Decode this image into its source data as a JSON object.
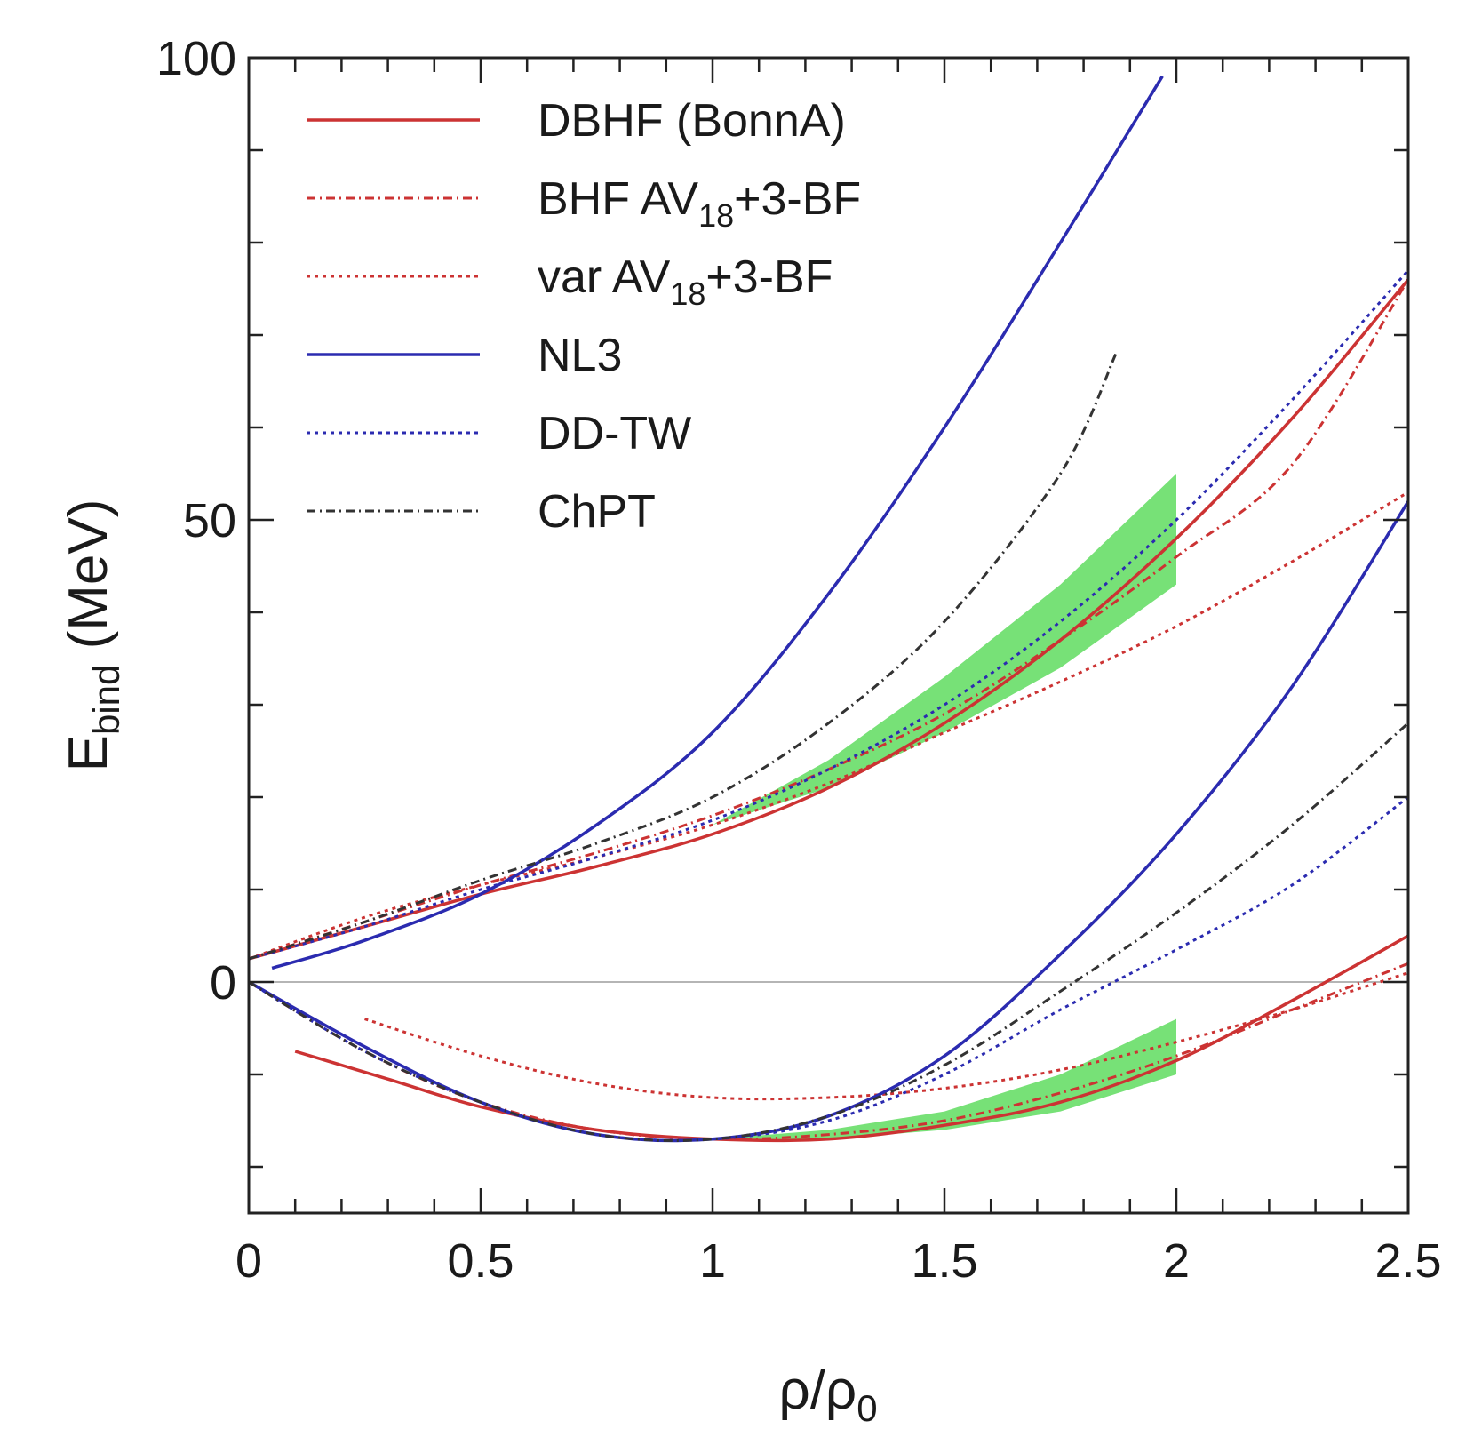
{
  "chart_data": {
    "type": "line",
    "xlabel": "ρ/ρ0",
    "ylabel": "E_bind (MeV)",
    "xlim": [
      0,
      2.5
    ],
    "ylim": [
      -25,
      100
    ],
    "x_ticks": [
      {
        "value": 0,
        "label": "0"
      },
      {
        "value": 0.5,
        "label": "0.5"
      },
      {
        "value": 1,
        "label": "1"
      },
      {
        "value": 1.5,
        "label": "1.5"
      },
      {
        "value": 2,
        "label": "2"
      },
      {
        "value": 2.5,
        "label": "2.5"
      }
    ],
    "y_ticks": [
      {
        "value": 0,
        "label": "0"
      },
      {
        "value": 50,
        "label": "50"
      },
      {
        "value": 100,
        "label": "100"
      }
    ],
    "x_minor_step": 0.1,
    "y_minor_step": 10,
    "zero_line": true,
    "legend_position": "top-left",
    "colors": {
      "red": "#cc3333",
      "blue": "#2b2bb0",
      "black": "#333333",
      "band": "#5fdc5f"
    },
    "legend": [
      {
        "series": "DBHF (BonnA)",
        "label": "DBHF (BonnA)",
        "color": "#cc3333",
        "dash": "solid"
      },
      {
        "series": "BHF AV18+3-BF",
        "label": "BHF AV",
        "sub": "18",
        "suffix": "+3-BF",
        "color": "#cc3333",
        "dash": "dashdot"
      },
      {
        "series": "var AV18+3-BF",
        "label": "var AV",
        "sub": "18",
        "suffix": "+3-BF",
        "color": "#cc3333",
        "dash": "dotted"
      },
      {
        "series": "NL3",
        "label": "NL3",
        "color": "#2b2bb0",
        "dash": "solid"
      },
      {
        "series": "DD-TW",
        "label": "DD-TW",
        "color": "#2b2bb0",
        "dash": "dotted"
      },
      {
        "series": "ChPT",
        "label": "ChPT",
        "color": "#333333",
        "dash": "dashdot"
      }
    ],
    "bands": [
      {
        "name": "neutron-matter-band",
        "x": [
          1.0,
          1.25,
          1.5,
          1.75,
          2.0
        ],
        "lower": [
          17,
          21,
          27,
          34,
          43
        ],
        "upper": [
          17,
          24,
          33,
          43,
          55
        ]
      },
      {
        "name": "nuclear-matter-band",
        "x": [
          1.0,
          1.25,
          1.5,
          1.75,
          2.0
        ],
        "lower": [
          -17,
          -17,
          -16,
          -14,
          -10
        ],
        "upper": [
          -17,
          -16,
          -14,
          -10,
          -4
        ]
      }
    ],
    "series": [
      {
        "name": "DBHF (BonnA)",
        "group": "neutron",
        "color": "#cc3333",
        "dash": "solid",
        "x": [
          0,
          0.25,
          0.5,
          0.75,
          1.0,
          1.25,
          1.5,
          1.75,
          2.0,
          2.25,
          2.5
        ],
        "y": [
          2.5,
          6,
          9.5,
          12.5,
          16,
          21,
          28,
          37,
          48,
          61,
          76
        ]
      },
      {
        "name": "BHF AV18+3-BF",
        "group": "neutron",
        "color": "#cc3333",
        "dash": "dashdot",
        "x": [
          0,
          0.25,
          0.5,
          0.75,
          1.0,
          1.25,
          1.5,
          1.75,
          2.0,
          2.25,
          2.5
        ],
        "y": [
          2.5,
          6.5,
          10.5,
          14,
          18,
          23,
          29,
          37,
          46,
          56,
          76
        ]
      },
      {
        "name": "var AV18+3-BF",
        "group": "neutron",
        "color": "#cc3333",
        "dash": "dotted",
        "x": [
          0,
          0.25,
          0.5,
          0.75,
          1.0,
          1.25,
          1.5,
          1.75,
          2.0,
          2.25,
          2.5
        ],
        "y": [
          2.5,
          7,
          10.5,
          13.5,
          17,
          21.5,
          27,
          32.5,
          38.5,
          45.5,
          53
        ]
      },
      {
        "name": "NL3",
        "group": "neutron",
        "color": "#2b2bb0",
        "dash": "solid",
        "x": [
          0.05,
          0.25,
          0.5,
          0.75,
          1.0,
          1.25,
          1.5,
          1.75,
          1.97
        ],
        "y": [
          1.5,
          4.5,
          9.5,
          17,
          27,
          42,
          60,
          80,
          98
        ]
      },
      {
        "name": "DD-TW",
        "group": "neutron",
        "color": "#2b2bb0",
        "dash": "dotted",
        "x": [
          0,
          0.25,
          0.5,
          0.75,
          1.0,
          1.25,
          1.5,
          1.75,
          2.0,
          2.25,
          2.5
        ],
        "y": [
          2.5,
          6,
          10,
          13.5,
          17.5,
          23,
          30,
          39,
          50,
          63,
          77
        ]
      },
      {
        "name": "ChPT",
        "group": "neutron",
        "color": "#333333",
        "dash": "dashdot",
        "x": [
          0,
          0.25,
          0.5,
          0.75,
          1.0,
          1.25,
          1.5,
          1.75,
          1.87
        ],
        "y": [
          2.5,
          6.5,
          11,
          15,
          20,
          28,
          39,
          55,
          68
        ]
      },
      {
        "name": "DBHF (BonnA)",
        "group": "nuclear",
        "color": "#cc3333",
        "dash": "solid",
        "x": [
          0.1,
          0.3,
          0.5,
          0.75,
          1.0,
          1.25,
          1.5,
          1.75,
          2.0,
          2.25,
          2.5
        ],
        "y": [
          -7.5,
          -10.5,
          -13.5,
          -16,
          -17,
          -17,
          -15.5,
          -13,
          -8.5,
          -2,
          5
        ]
      },
      {
        "name": "BHF AV18+3-BF",
        "group": "nuclear",
        "color": "#cc3333",
        "dash": "dashdot",
        "x": [
          0,
          0.25,
          0.5,
          0.75,
          1.0,
          1.25,
          1.5,
          1.75,
          2.0,
          2.25,
          2.5
        ],
        "y": [
          0,
          -7.5,
          -13,
          -16,
          -17,
          -16.5,
          -15,
          -12,
          -8,
          -3,
          2
        ]
      },
      {
        "name": "var AV18+3-BF",
        "group": "nuclear",
        "color": "#cc3333",
        "dash": "dotted",
        "x": [
          0.25,
          0.5,
          0.75,
          1.0,
          1.25,
          1.5,
          1.75,
          2.0,
          2.25,
          2.5
        ],
        "y": [
          -4,
          -8,
          -11,
          -12.5,
          -12.5,
          -11.5,
          -9.5,
          -6.5,
          -3,
          1
        ]
      },
      {
        "name": "NL3",
        "group": "nuclear",
        "color": "#2b2bb0",
        "dash": "solid",
        "x": [
          0,
          0.25,
          0.5,
          0.75,
          1.0,
          1.25,
          1.5,
          1.75,
          2.0,
          2.25,
          2.5
        ],
        "y": [
          0,
          -7,
          -13,
          -16.5,
          -17,
          -14.5,
          -8,
          3,
          16,
          32,
          52
        ]
      },
      {
        "name": "DD-TW",
        "group": "nuclear",
        "color": "#2b2bb0",
        "dash": "dotted",
        "x": [
          0,
          0.25,
          0.5,
          0.75,
          1.0,
          1.25,
          1.5,
          1.75,
          2.0,
          2.25,
          2.5
        ],
        "y": [
          0,
          -7.5,
          -13,
          -16.5,
          -17,
          -15,
          -10,
          -3,
          3.5,
          10.5,
          20
        ]
      },
      {
        "name": "ChPT",
        "group": "nuclear",
        "color": "#333333",
        "dash": "dashdot",
        "x": [
          0,
          0.25,
          0.5,
          0.75,
          1.0,
          1.25,
          1.5,
          1.75,
          2.0,
          2.25,
          2.5
        ],
        "y": [
          0,
          -7.5,
          -13,
          -16.5,
          -17,
          -14.5,
          -9,
          -1,
          7.5,
          17,
          28
        ]
      }
    ]
  }
}
